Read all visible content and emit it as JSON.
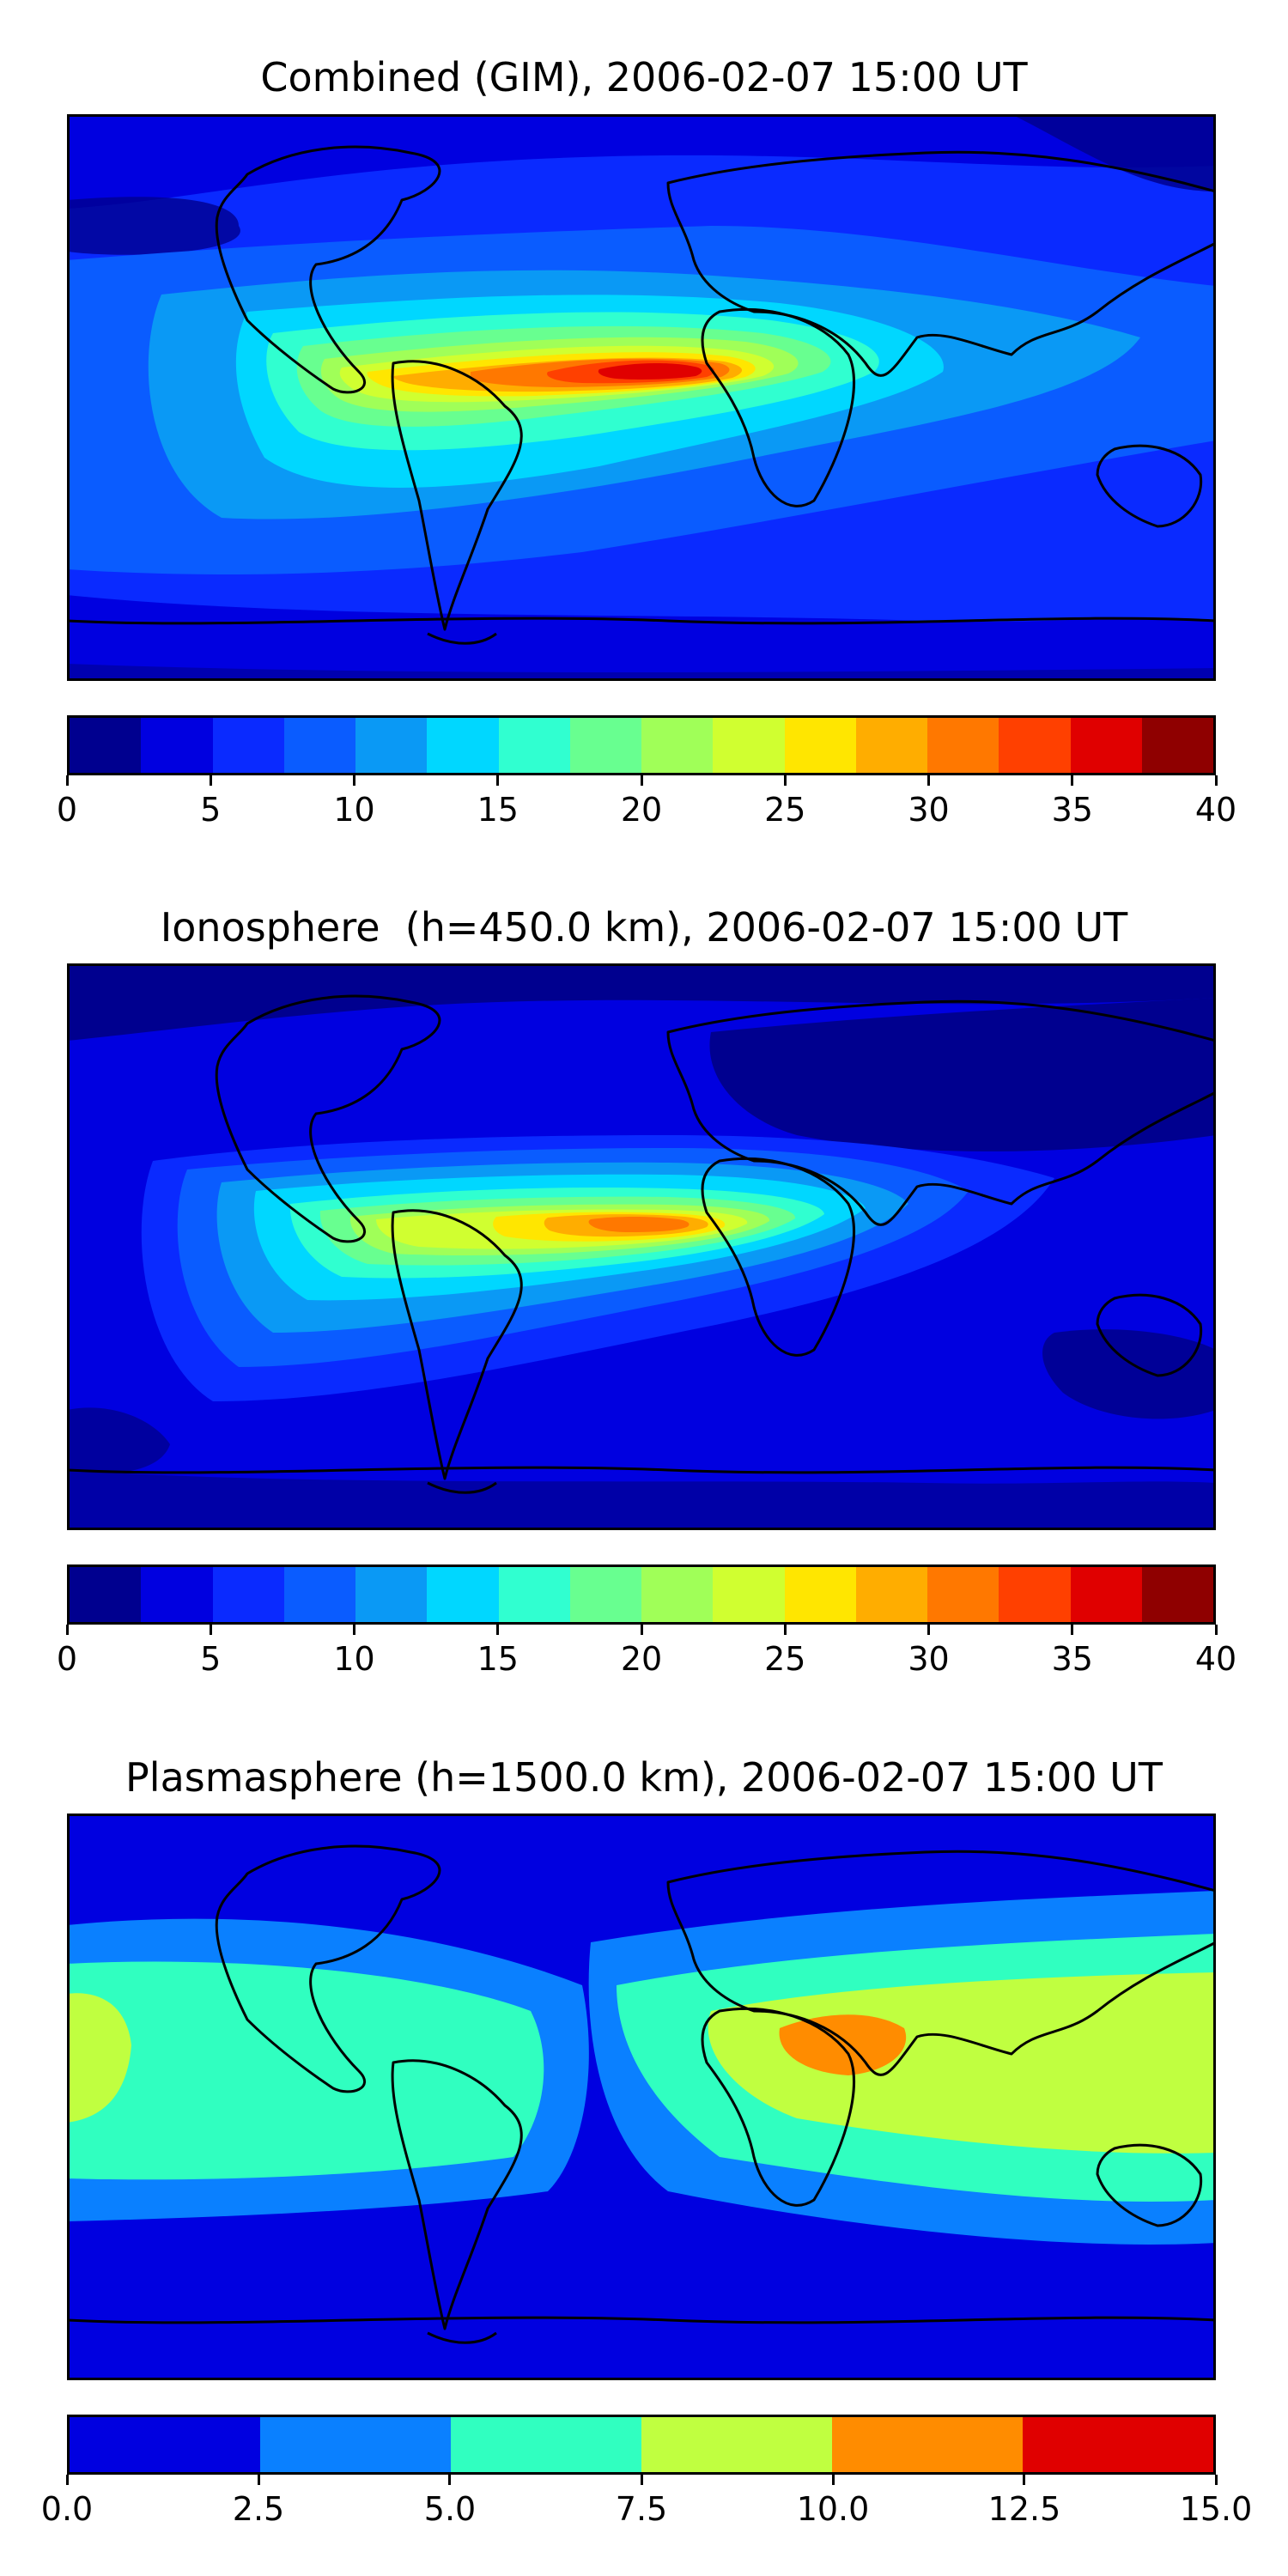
{
  "panels": [
    {
      "title": "Combined (GIM), 2006-02-07 15:00 UT",
      "colorbar": {
        "colors": [
          "#00008f",
          "#0000e0",
          "#0a2aff",
          "#0a5cff",
          "#0a99f5",
          "#00d7ff",
          "#30ffd0",
          "#68ff90",
          "#a0ff58",
          "#d0ff30",
          "#ffe600",
          "#ffad00",
          "#ff7800",
          "#ff4000",
          "#e00000",
          "#8f0000"
        ],
        "tick_labels": [
          "0",
          "5",
          "10",
          "15",
          "20",
          "25",
          "30",
          "35",
          "40"
        ],
        "range": [
          0,
          40
        ]
      }
    },
    {
      "title": "Ionosphere  (h=450.0 km), 2006-02-07 15:00 UT",
      "colorbar": {
        "colors": [
          "#00008f",
          "#0000e0",
          "#0a2aff",
          "#0a5cff",
          "#0a99f5",
          "#00d7ff",
          "#30ffd0",
          "#68ff90",
          "#a0ff58",
          "#d0ff30",
          "#ffe600",
          "#ffad00",
          "#ff7800",
          "#ff4000",
          "#e00000",
          "#8f0000"
        ],
        "tick_labels": [
          "0",
          "5",
          "10",
          "15",
          "20",
          "25",
          "30",
          "35",
          "40"
        ],
        "range": [
          0,
          40
        ]
      }
    },
    {
      "title": "Plasmasphere (h=1500.0 km), 2006-02-07 15:00 UT",
      "colorbar": {
        "colors": [
          "#0000e0",
          "#0a80ff",
          "#30ffc0",
          "#c0ff40",
          "#ff8c00",
          "#e00000"
        ],
        "tick_labels": [
          "0.0",
          "2.5",
          "5.0",
          "7.5",
          "10.0",
          "12.5",
          "15.0"
        ],
        "range": [
          0,
          15
        ]
      }
    }
  ]
}
